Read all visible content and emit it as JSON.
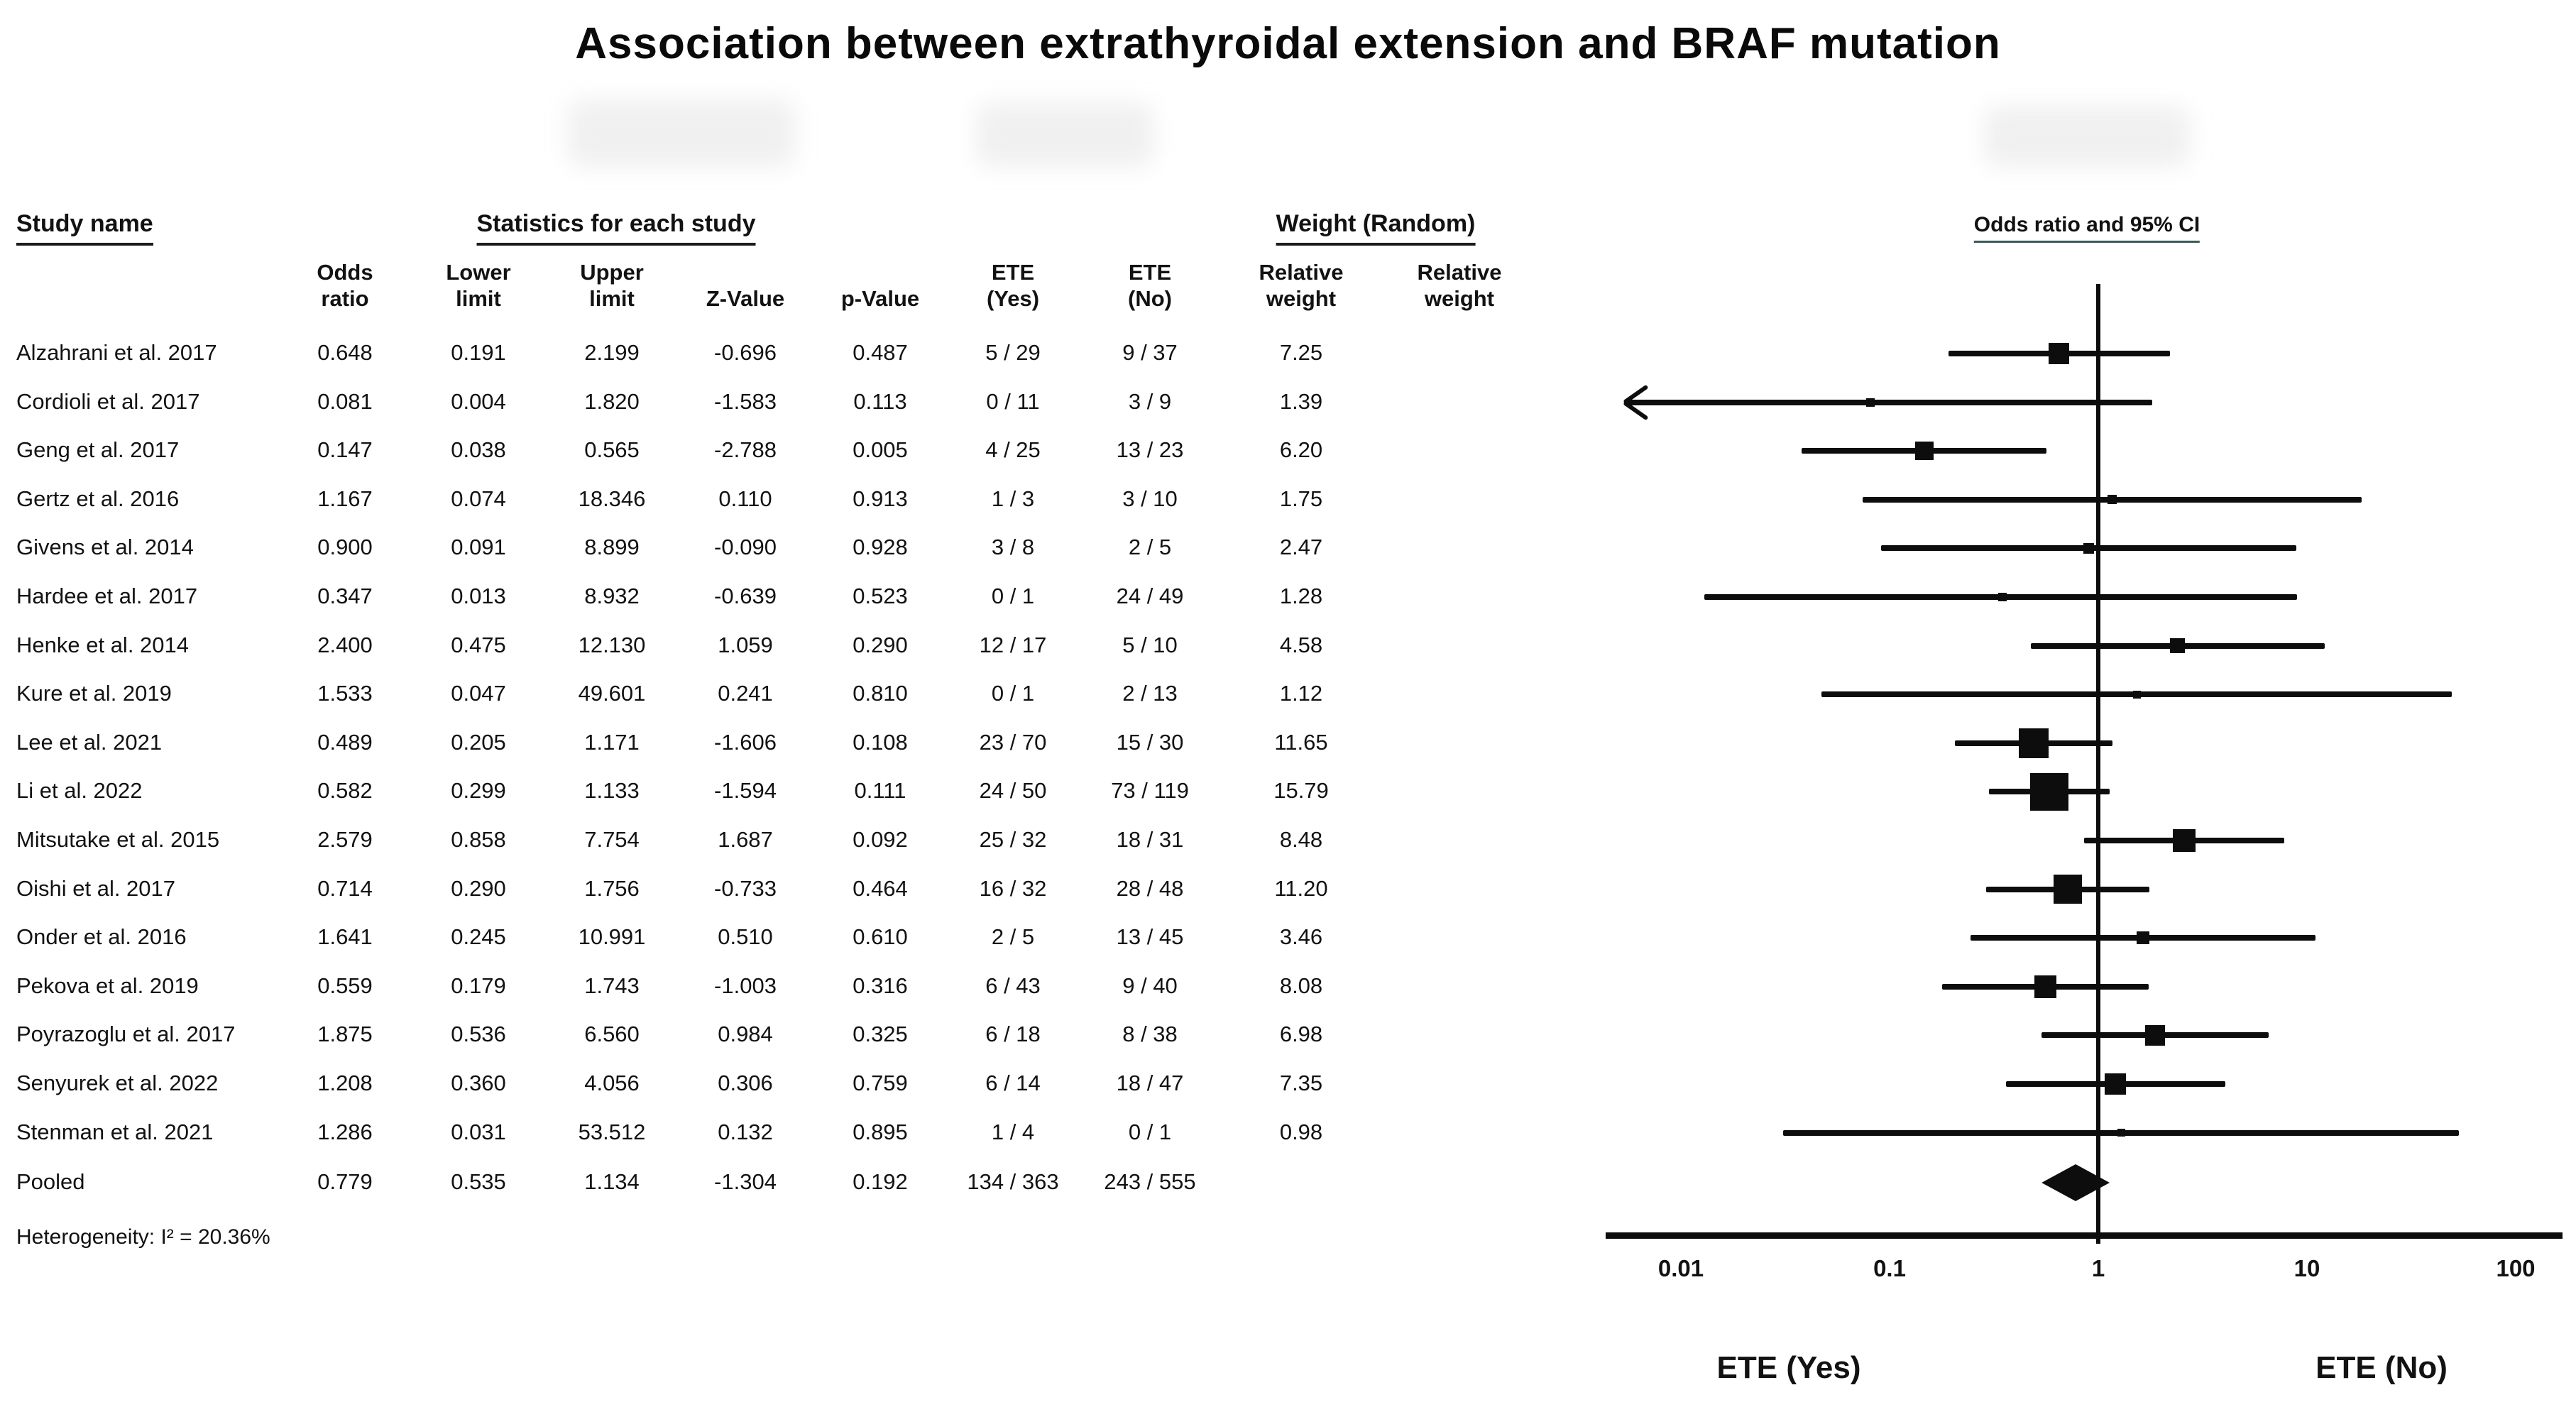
{
  "title": "Association between extrathyroidal extension and BRAF mutation",
  "section_headers": {
    "study": "Study name",
    "statistics": "Statistics for each study",
    "weight": "Weight (Random)",
    "plot": "Odds ratio and 95% CI"
  },
  "table": {
    "columns": [
      {
        "label": "Odds\nratio"
      },
      {
        "label": "Lower\nlimit"
      },
      {
        "label": "Upper\nlimit"
      },
      {
        "label": "Z-Value"
      },
      {
        "label": "p-Value"
      },
      {
        "label": "ETE\n(Yes)"
      },
      {
        "label": "ETE\n(No)"
      },
      {
        "label": "Relative\nweight"
      },
      {
        "label": "Relative\nweight"
      }
    ]
  },
  "chart_data": {
    "type": "scatter",
    "variant": "forest-plot",
    "title": "Association between extrathyroidal extension and BRAF mutation",
    "legend_header": "Odds ratio and 95% CI",
    "axis": {
      "scale": "log10",
      "min": 0.01,
      "max": 100,
      "ticks": [
        "0.01",
        "0.1",
        "1",
        "10",
        "100"
      ],
      "ref_line": 1,
      "xlabel_left": "ETE (Yes)",
      "xlabel_right": "ETE (No)"
    },
    "studies": [
      {
        "name": "Alzahrani et al. 2017",
        "or": "0.648",
        "lo": "0.191",
        "hi": "2.199",
        "z": "-0.696",
        "p": "0.487",
        "ete_yes": "5 / 29",
        "ete_no": "9 / 37",
        "weight": "7.25"
      },
      {
        "name": "Cordioli et al. 2017",
        "or": "0.081",
        "lo": "0.004",
        "hi": "1.820",
        "z": "-1.583",
        "p": "0.113",
        "ete_yes": "0 / 11",
        "ete_no": "3 / 9",
        "weight": "1.39"
      },
      {
        "name": "Geng et al. 2017",
        "or": "0.147",
        "lo": "0.038",
        "hi": "0.565",
        "z": "-2.788",
        "p": "0.005",
        "ete_yes": "4 / 25",
        "ete_no": "13 / 23",
        "weight": "6.20"
      },
      {
        "name": "Gertz et al. 2016",
        "or": "1.167",
        "lo": "0.074",
        "hi": "18.346",
        "z": "0.110",
        "p": "0.913",
        "ete_yes": "1 / 3",
        "ete_no": "3 / 10",
        "weight": "1.75"
      },
      {
        "name": "Givens et al. 2014",
        "or": "0.900",
        "lo": "0.091",
        "hi": "8.899",
        "z": "-0.090",
        "p": "0.928",
        "ete_yes": "3 / 8",
        "ete_no": "2 / 5",
        "weight": "2.47"
      },
      {
        "name": "Hardee et al. 2017",
        "or": "0.347",
        "lo": "0.013",
        "hi": "8.932",
        "z": "-0.639",
        "p": "0.523",
        "ete_yes": "0 / 1",
        "ete_no": "24 / 49",
        "weight": "1.28"
      },
      {
        "name": "Henke et al. 2014",
        "or": "2.400",
        "lo": "0.475",
        "hi": "12.130",
        "z": "1.059",
        "p": "0.290",
        "ete_yes": "12 / 17",
        "ete_no": "5 / 10",
        "weight": "4.58"
      },
      {
        "name": "Kure et al. 2019",
        "or": "1.533",
        "lo": "0.047",
        "hi": "49.601",
        "z": "0.241",
        "p": "0.810",
        "ete_yes": "0 / 1",
        "ete_no": "2 / 13",
        "weight": "1.12"
      },
      {
        "name": "Lee et al. 2021",
        "or": "0.489",
        "lo": "0.205",
        "hi": "1.171",
        "z": "-1.606",
        "p": "0.108",
        "ete_yes": "23 / 70",
        "ete_no": "15 / 30",
        "weight": "11.65"
      },
      {
        "name": "Li et al. 2022",
        "or": "0.582",
        "lo": "0.299",
        "hi": "1.133",
        "z": "-1.594",
        "p": "0.111",
        "ete_yes": "24 / 50",
        "ete_no": "73 / 119",
        "weight": "15.79"
      },
      {
        "name": "Mitsutake et al. 2015",
        "or": "2.579",
        "lo": "0.858",
        "hi": "7.754",
        "z": "1.687",
        "p": "0.092",
        "ete_yes": "25 / 32",
        "ete_no": "18 / 31",
        "weight": "8.48"
      },
      {
        "name": "Oishi et al. 2017",
        "or": "0.714",
        "lo": "0.290",
        "hi": "1.756",
        "z": "-0.733",
        "p": "0.464",
        "ete_yes": "16 / 32",
        "ete_no": "28 / 48",
        "weight": "11.20"
      },
      {
        "name": "Onder et al. 2016",
        "or": "1.641",
        "lo": "0.245",
        "hi": "10.991",
        "z": "0.510",
        "p": "0.610",
        "ete_yes": "2 / 5",
        "ete_no": "13 / 45",
        "weight": "3.46"
      },
      {
        "name": "Pekova et al. 2019",
        "or": "0.559",
        "lo": "0.179",
        "hi": "1.743",
        "z": "-1.003",
        "p": "0.316",
        "ete_yes": "6 / 43",
        "ete_no": "9 / 40",
        "weight": "8.08"
      },
      {
        "name": "Poyrazoglu et al. 2017",
        "or": "1.875",
        "lo": "0.536",
        "hi": "6.560",
        "z": "0.984",
        "p": "0.325",
        "ete_yes": "6 / 18",
        "ete_no": "8 / 38",
        "weight": "6.98"
      },
      {
        "name": "Senyurek et al. 2022",
        "or": "1.208",
        "lo": "0.360",
        "hi": "4.056",
        "z": "0.306",
        "p": "0.759",
        "ete_yes": "6 / 14",
        "ete_no": "18 / 47",
        "weight": "7.35"
      },
      {
        "name": "Stenman et al. 2021",
        "or": "1.286",
        "lo": "0.031",
        "hi": "53.512",
        "z": "0.132",
        "p": "0.895",
        "ete_yes": "1 / 4",
        "ete_no": "0 / 1",
        "weight": "0.98"
      }
    ],
    "pooled": {
      "name": "Pooled",
      "or": "0.779",
      "lo": "0.535",
      "hi": "1.134",
      "z": "-1.304",
      "p": "0.192",
      "ete_yes": "134 / 363",
      "ete_no": "243 / 555",
      "weight": ""
    },
    "heterogeneity": "Heterogeneity: I² = 20.36%"
  }
}
